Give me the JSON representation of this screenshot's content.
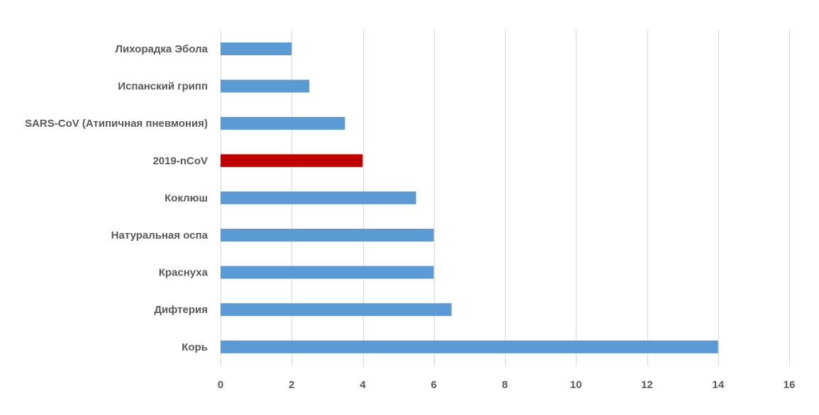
{
  "chart_data": {
    "type": "bar",
    "orientation": "horizontal",
    "title": "",
    "xlabel": "",
    "ylabel": "",
    "categories": [
      "Лихорадка Эбола",
      "Испанский грипп",
      "SARS-CoV (Атипичная пневмония)",
      "2019-nCoV",
      "Коклюш",
      "Натуральная оспа",
      "Краснуха",
      "Дифтерия",
      "Корь"
    ],
    "values": [
      2,
      2.5,
      3.5,
      4,
      5.5,
      6,
      6,
      6.5,
      14
    ],
    "highlight_category": "2019-nCoV",
    "xlim": [
      0,
      16
    ],
    "xticks": [
      0,
      2,
      4,
      6,
      8,
      10,
      12,
      14,
      16
    ],
    "grid": true,
    "legend": "none",
    "colors": {
      "bar": "#5b9bd5",
      "highlight": "#c00000",
      "grid": "#d9d9d9",
      "text": "#595959"
    }
  }
}
